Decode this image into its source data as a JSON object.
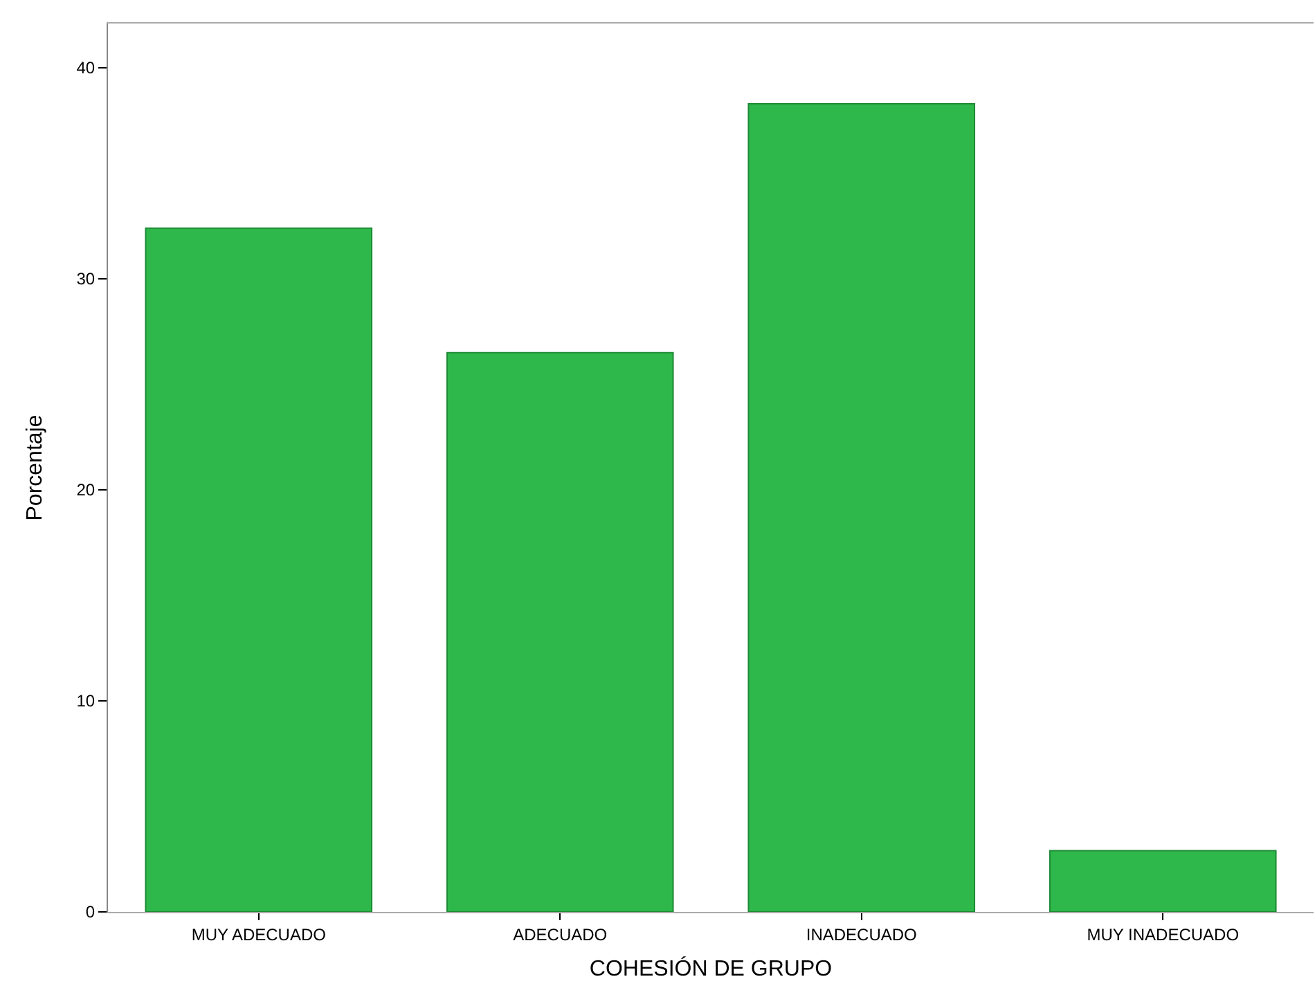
{
  "chart_data": {
    "type": "bar",
    "xlabel": "COHESIÓN DE GRUPO",
    "ylabel": "Porcentaje",
    "categories": [
      "MUY ADECUADO",
      "ADECUADO",
      "INADECUADO",
      "MUY INADECUADO"
    ],
    "values": [
      32.4,
      26.5,
      38.3,
      2.9
    ],
    "color": "#2eb84b",
    "ylim": [
      0,
      42.1
    ],
    "yticks": [
      0,
      10,
      20,
      30,
      40
    ],
    "grid": false,
    "legend": false
  }
}
